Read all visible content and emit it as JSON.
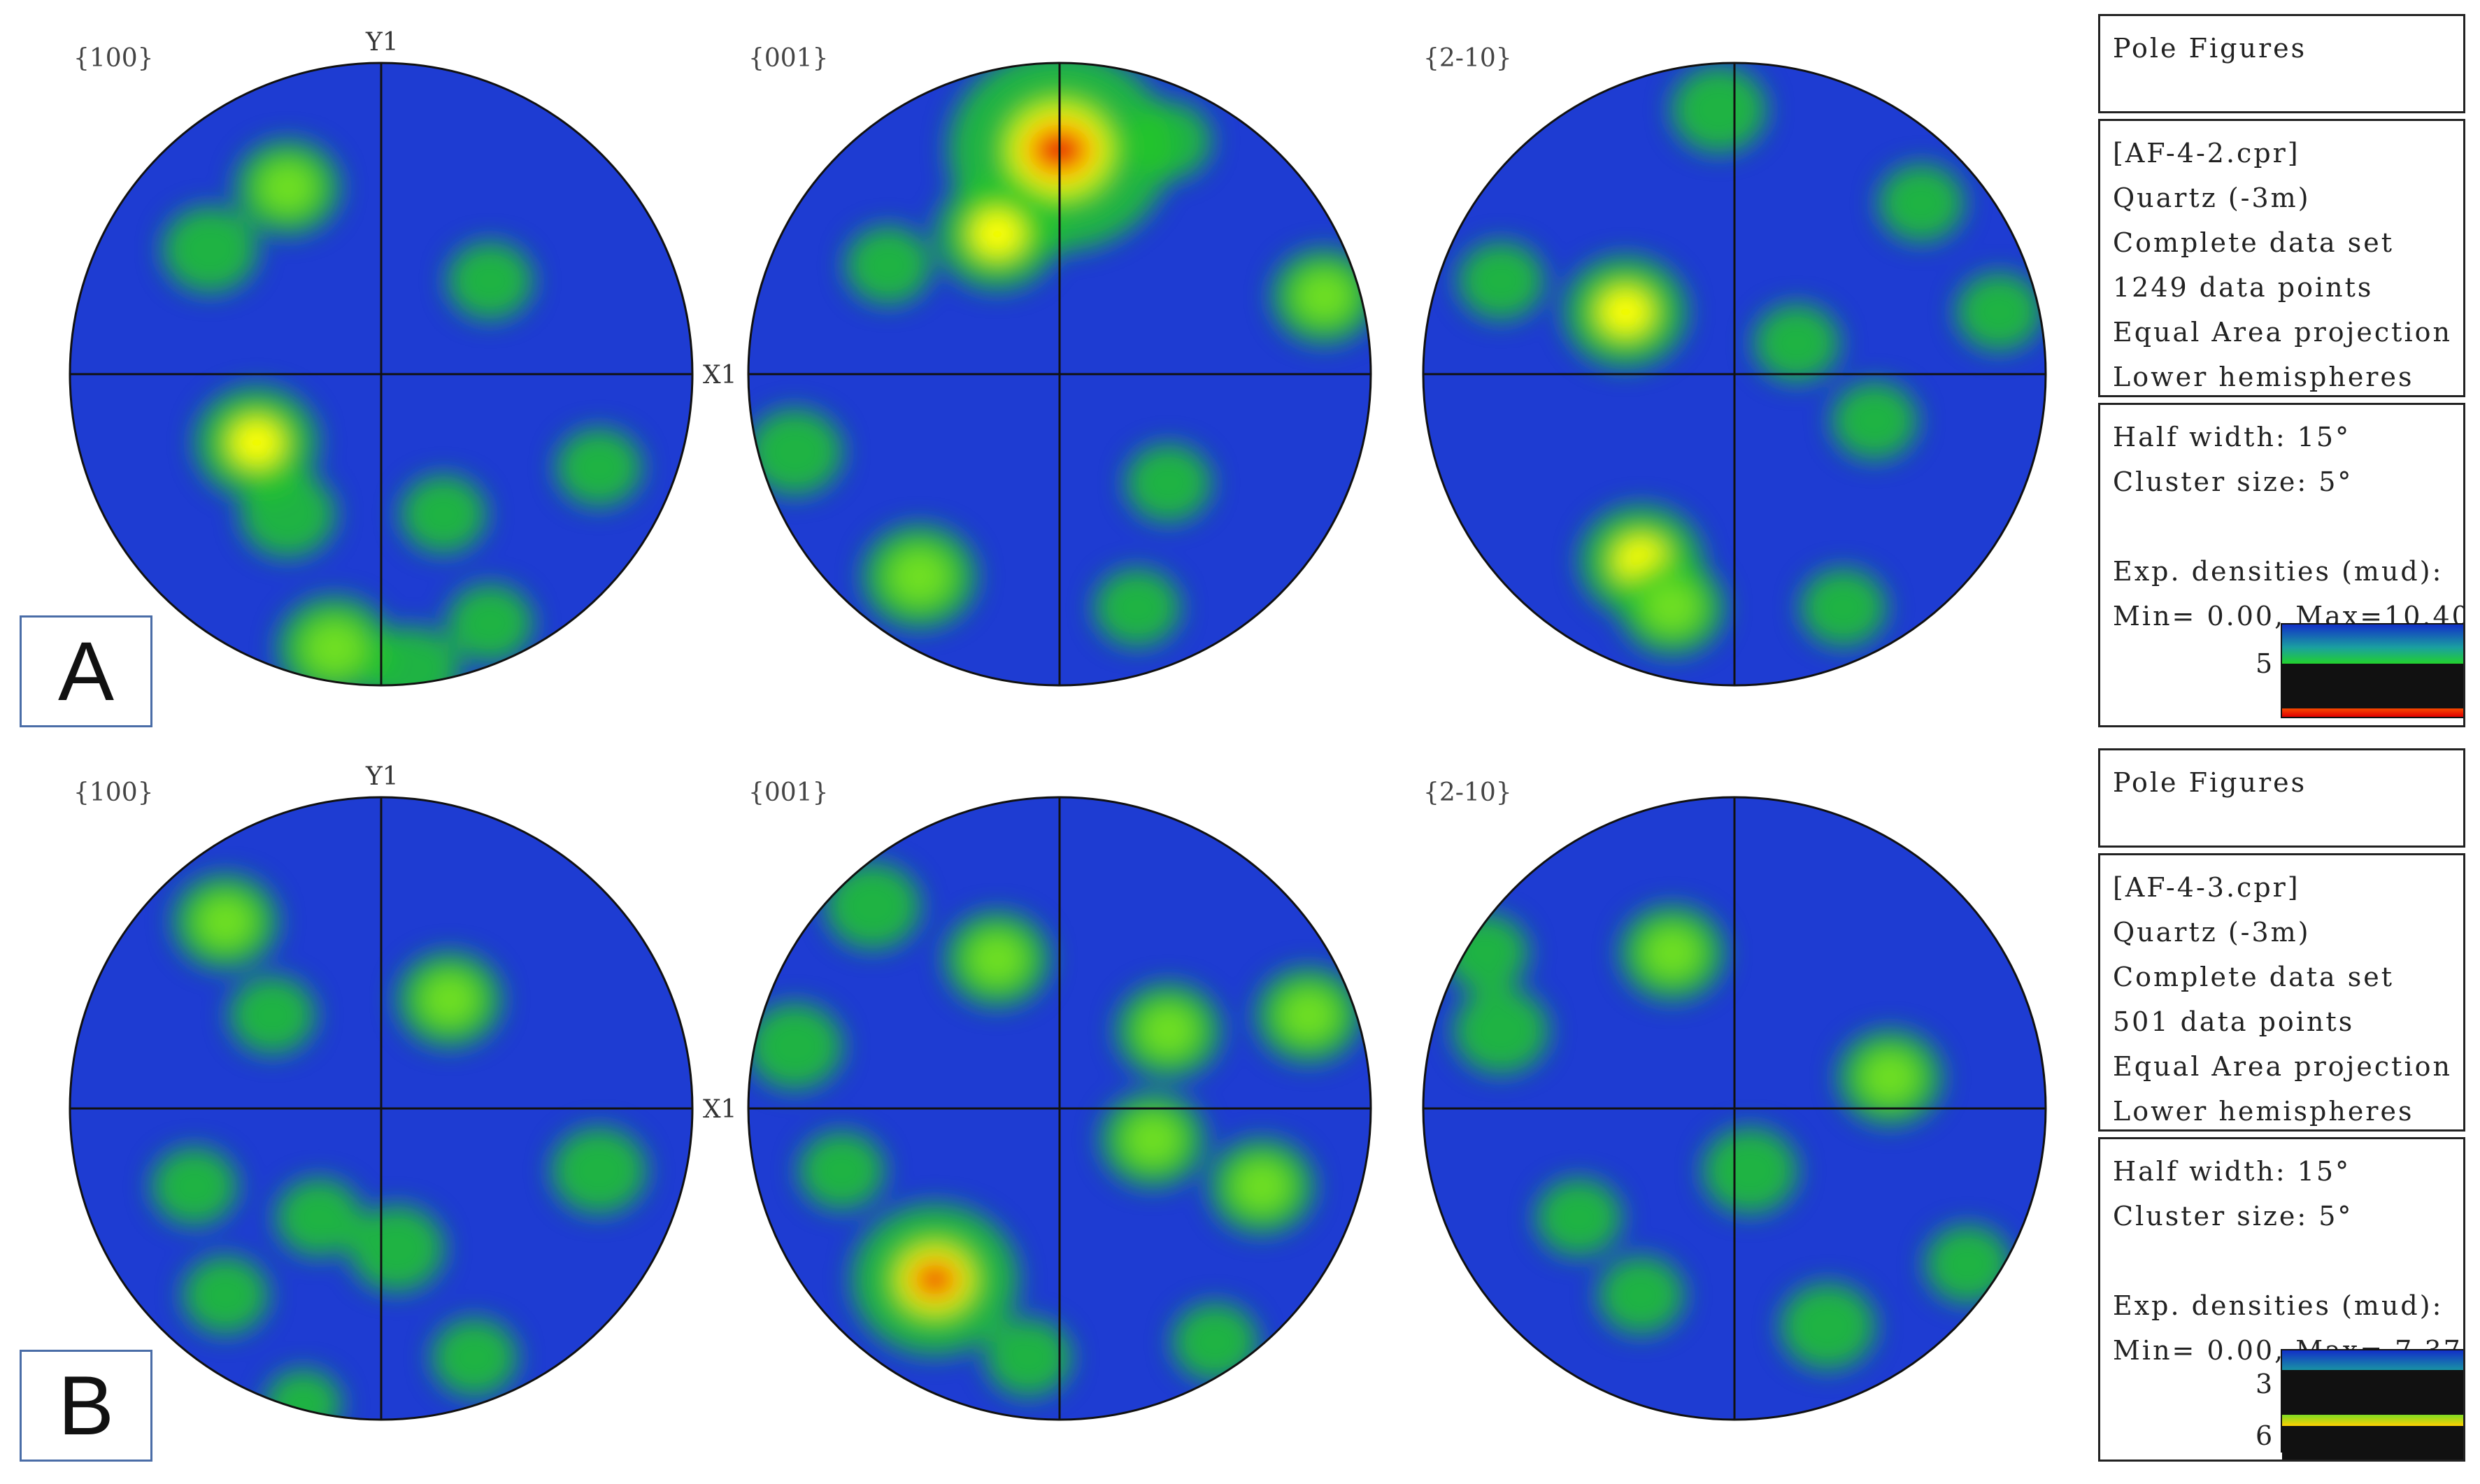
{
  "colors": {
    "low": "#1e3cd2",
    "mid": "#22c828",
    "high": "#ffff00",
    "peak": "#e00000",
    "frame": "#111111"
  },
  "chart_data": [
    {
      "type": "heatmap",
      "label": "A",
      "subplots": [
        {
          "title": "{100}",
          "y_axis_label": "Y1",
          "x_axis_label": "",
          "blobs": [
            {
              "x": -0.3,
              "y": 0.6,
              "v": 4
            },
            {
              "x": -0.55,
              "y": 0.4,
              "v": 3.5
            },
            {
              "x": -0.4,
              "y": -0.22,
              "v": 5
            },
            {
              "x": -0.3,
              "y": -0.45,
              "v": 3.5
            },
            {
              "x": -0.15,
              "y": -0.88,
              "v": 4.5
            },
            {
              "x": 0.35,
              "y": 0.3,
              "v": 3
            },
            {
              "x": 0.2,
              "y": -0.45,
              "v": 3
            },
            {
              "x": 0.7,
              "y": -0.3,
              "v": 3
            },
            {
              "x": 0.1,
              "y": -0.95,
              "v": 3.5
            },
            {
              "x": 0.35,
              "y": -0.8,
              "v": 3
            }
          ]
        },
        {
          "title": "{001}",
          "y_axis_label": "",
          "x_axis_label": "X1",
          "blobs": [
            {
              "x": 0.0,
              "y": 0.72,
              "v": 10.4
            },
            {
              "x": -0.2,
              "y": 0.45,
              "v": 5
            },
            {
              "x": 0.35,
              "y": 0.75,
              "v": 3
            },
            {
              "x": 0.85,
              "y": 0.25,
              "v": 4
            },
            {
              "x": -0.85,
              "y": -0.25,
              "v": 3.5
            },
            {
              "x": -0.45,
              "y": -0.65,
              "v": 4.5
            },
            {
              "x": 0.35,
              "y": -0.35,
              "v": 3
            },
            {
              "x": 0.25,
              "y": -0.75,
              "v": 3
            },
            {
              "x": -0.55,
              "y": 0.35,
              "v": 3
            }
          ]
        },
        {
          "title": "{2-10}",
          "y_axis_label": "",
          "x_axis_label": "",
          "blobs": [
            {
              "x": -0.35,
              "y": 0.2,
              "v": 5
            },
            {
              "x": -0.3,
              "y": -0.6,
              "v": 5
            },
            {
              "x": -0.2,
              "y": -0.75,
              "v": 4
            },
            {
              "x": -0.05,
              "y": 0.85,
              "v": 3.5
            },
            {
              "x": -0.75,
              "y": 0.3,
              "v": 3
            },
            {
              "x": 0.85,
              "y": 0.2,
              "v": 3
            },
            {
              "x": 0.2,
              "y": 0.1,
              "v": 3
            },
            {
              "x": 0.45,
              "y": -0.15,
              "v": 3
            },
            {
              "x": 0.35,
              "y": -0.75,
              "v": 3
            },
            {
              "x": 0.6,
              "y": 0.55,
              "v": 3
            }
          ]
        }
      ],
      "info": {
        "header": "Pole Figures",
        "lines": [
          "[AF-4-2.cpr]",
          "Quartz (-3m)",
          "Complete data set",
          "1249 data points",
          "Equal Area projection",
          "Lower hemispheres"
        ],
        "params": [
          "Half width: 15°",
          "Cluster size: 5°",
          "",
          "Exp. densities (mud):",
          "Min= 0.00, Max=10.40"
        ],
        "min": 0.0,
        "max": 10.4,
        "legend_ticks": [
          5
        ]
      }
    },
    {
      "type": "heatmap",
      "label": "B",
      "subplots": [
        {
          "title": "{100}",
          "y_axis_label": "Y1",
          "x_axis_label": "",
          "blobs": [
            {
              "x": -0.5,
              "y": 0.6,
              "v": 4
            },
            {
              "x": 0.22,
              "y": 0.35,
              "v": 4
            },
            {
              "x": -0.35,
              "y": 0.3,
              "v": 3
            },
            {
              "x": -0.2,
              "y": -0.35,
              "v": 3
            },
            {
              "x": 0.05,
              "y": -0.45,
              "v": 3.5
            },
            {
              "x": 0.7,
              "y": -0.2,
              "v": 3.5
            },
            {
              "x": -0.6,
              "y": -0.25,
              "v": 3
            },
            {
              "x": -0.5,
              "y": -0.6,
              "v": 3
            },
            {
              "x": 0.3,
              "y": -0.8,
              "v": 3
            },
            {
              "x": -0.25,
              "y": -0.95,
              "v": 2.5
            }
          ]
        },
        {
          "title": "{001}",
          "y_axis_label": "",
          "x_axis_label": "X1",
          "blobs": [
            {
              "x": -0.4,
              "y": -0.55,
              "v": 7.37
            },
            {
              "x": -0.2,
              "y": 0.48,
              "v": 4
            },
            {
              "x": -0.6,
              "y": 0.65,
              "v": 3.5
            },
            {
              "x": 0.35,
              "y": 0.25,
              "v": 4
            },
            {
              "x": 0.8,
              "y": 0.3,
              "v": 4
            },
            {
              "x": -0.85,
              "y": 0.2,
              "v": 3.5
            },
            {
              "x": 0.3,
              "y": -0.1,
              "v": 4
            },
            {
              "x": 0.65,
              "y": -0.25,
              "v": 4
            },
            {
              "x": -0.7,
              "y": -0.2,
              "v": 3
            },
            {
              "x": -0.1,
              "y": -0.8,
              "v": 3
            },
            {
              "x": 0.5,
              "y": -0.75,
              "v": 3
            }
          ]
        },
        {
          "title": "{2-10}",
          "y_axis_label": "",
          "x_axis_label": "",
          "blobs": [
            {
              "x": -0.2,
              "y": 0.5,
              "v": 4
            },
            {
              "x": -0.75,
              "y": 0.25,
              "v": 3.5
            },
            {
              "x": 0.5,
              "y": 0.1,
              "v": 4
            },
            {
              "x": 0.05,
              "y": -0.2,
              "v": 3.5
            },
            {
              "x": -0.5,
              "y": -0.35,
              "v": 3
            },
            {
              "x": 0.3,
              "y": -0.7,
              "v": 3.5
            },
            {
              "x": -0.3,
              "y": -0.6,
              "v": 3
            },
            {
              "x": 0.75,
              "y": -0.5,
              "v": 3
            },
            {
              "x": -0.8,
              "y": 0.5,
              "v": 3
            }
          ]
        }
      ],
      "info": {
        "header": "Pole Figures",
        "lines": [
          "[AF-4-3.cpr]",
          "Quartz (-3m)",
          "Complete data set",
          "501 data points",
          "Equal Area projection",
          "Lower hemispheres"
        ],
        "params": [
          "Half width: 15°",
          "Cluster size: 5°",
          "",
          "Exp. densities (mud):",
          "Min= 0.00, Max= 7.37"
        ],
        "min": 0.0,
        "max": 7.37,
        "legend_ticks": [
          3,
          6
        ]
      }
    }
  ]
}
